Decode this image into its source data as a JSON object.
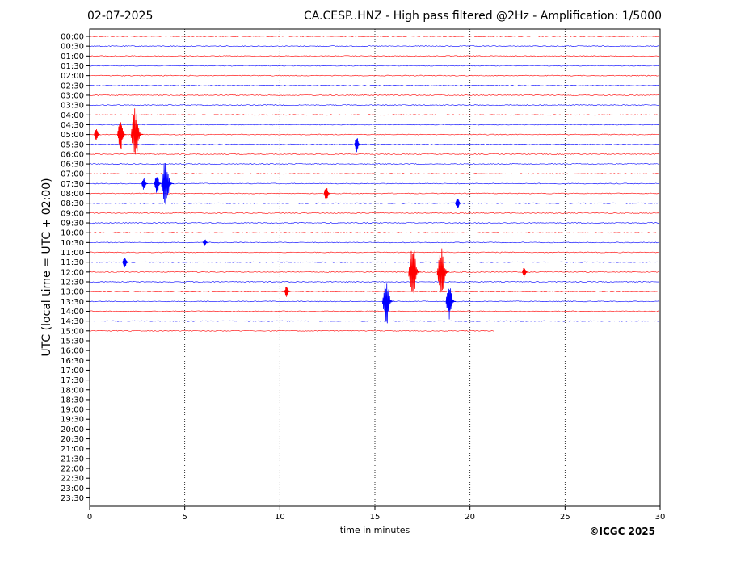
{
  "header": {
    "date": "02-07-2025",
    "title": "CA.CESP..HNZ - High pass filtered @2Hz - Amplification: 1/5000"
  },
  "footer": {
    "copyright": "©ICGC 2025"
  },
  "chart_data": {
    "type": "line",
    "xlabel": "time in minutes",
    "ylabel": "UTC (local time = UTC + 02:00)",
    "xlim": [
      0,
      30
    ],
    "x_ticks": [
      "0",
      "5",
      "10",
      "15",
      "20",
      "25",
      "30"
    ],
    "y_ticks": [
      "00:00",
      "00:30",
      "01:00",
      "01:30",
      "02:00",
      "02:30",
      "03:00",
      "03:30",
      "04:00",
      "04:30",
      "05:00",
      "05:30",
      "06:00",
      "06:30",
      "07:00",
      "07:30",
      "08:00",
      "08:30",
      "09:00",
      "09:30",
      "10:00",
      "10:30",
      "11:00",
      "11:30",
      "12:00",
      "12:30",
      "13:00",
      "13:30",
      "14:00",
      "14:30",
      "15:00",
      "15:30",
      "16:00",
      "16:30",
      "17:00",
      "17:30",
      "18:00",
      "18:30",
      "19:00",
      "19:30",
      "20:00",
      "20:30",
      "21:00",
      "21:30",
      "22:00",
      "22:30",
      "23:00",
      "23:30"
    ],
    "grid": "vertical dotted at 5-minute intervals",
    "colors": {
      "even_trace": "#ff0000",
      "odd_trace": "#0000ff"
    },
    "traces_recorded": 31,
    "last_trace_end_minutes": 21.3,
    "events": [
      {
        "row": "05:00",
        "minute": 0.4,
        "amplitude": 0.25
      },
      {
        "row": "05:00",
        "minute": 1.7,
        "amplitude": 0.6
      },
      {
        "row": "05:00",
        "minute": 2.5,
        "amplitude": 1.0
      },
      {
        "row": "05:30",
        "minute": 14.1,
        "amplitude": 0.3
      },
      {
        "row": "07:30",
        "minute": 2.9,
        "amplitude": 0.25
      },
      {
        "row": "07:30",
        "minute": 3.6,
        "amplitude": 0.4
      },
      {
        "row": "07:30",
        "minute": 4.1,
        "amplitude": 1.0
      },
      {
        "row": "08:00",
        "minute": 12.5,
        "amplitude": 0.3
      },
      {
        "row": "08:30",
        "minute": 19.4,
        "amplitude": 0.25
      },
      {
        "row": "10:30",
        "minute": 6.1,
        "amplitude": 0.15
      },
      {
        "row": "11:30",
        "minute": 1.9,
        "amplitude": 0.25
      },
      {
        "row": "12:00",
        "minute": 17.1,
        "amplitude": 1.0
      },
      {
        "row": "12:00",
        "minute": 18.6,
        "amplitude": 1.0
      },
      {
        "row": "12:00",
        "minute": 22.9,
        "amplitude": 0.2
      },
      {
        "row": "13:00",
        "minute": 10.4,
        "amplitude": 0.2
      },
      {
        "row": "13:30",
        "minute": 15.7,
        "amplitude": 0.9
      },
      {
        "row": "13:30",
        "minute": 19.0,
        "amplitude": 0.7
      }
    ]
  }
}
